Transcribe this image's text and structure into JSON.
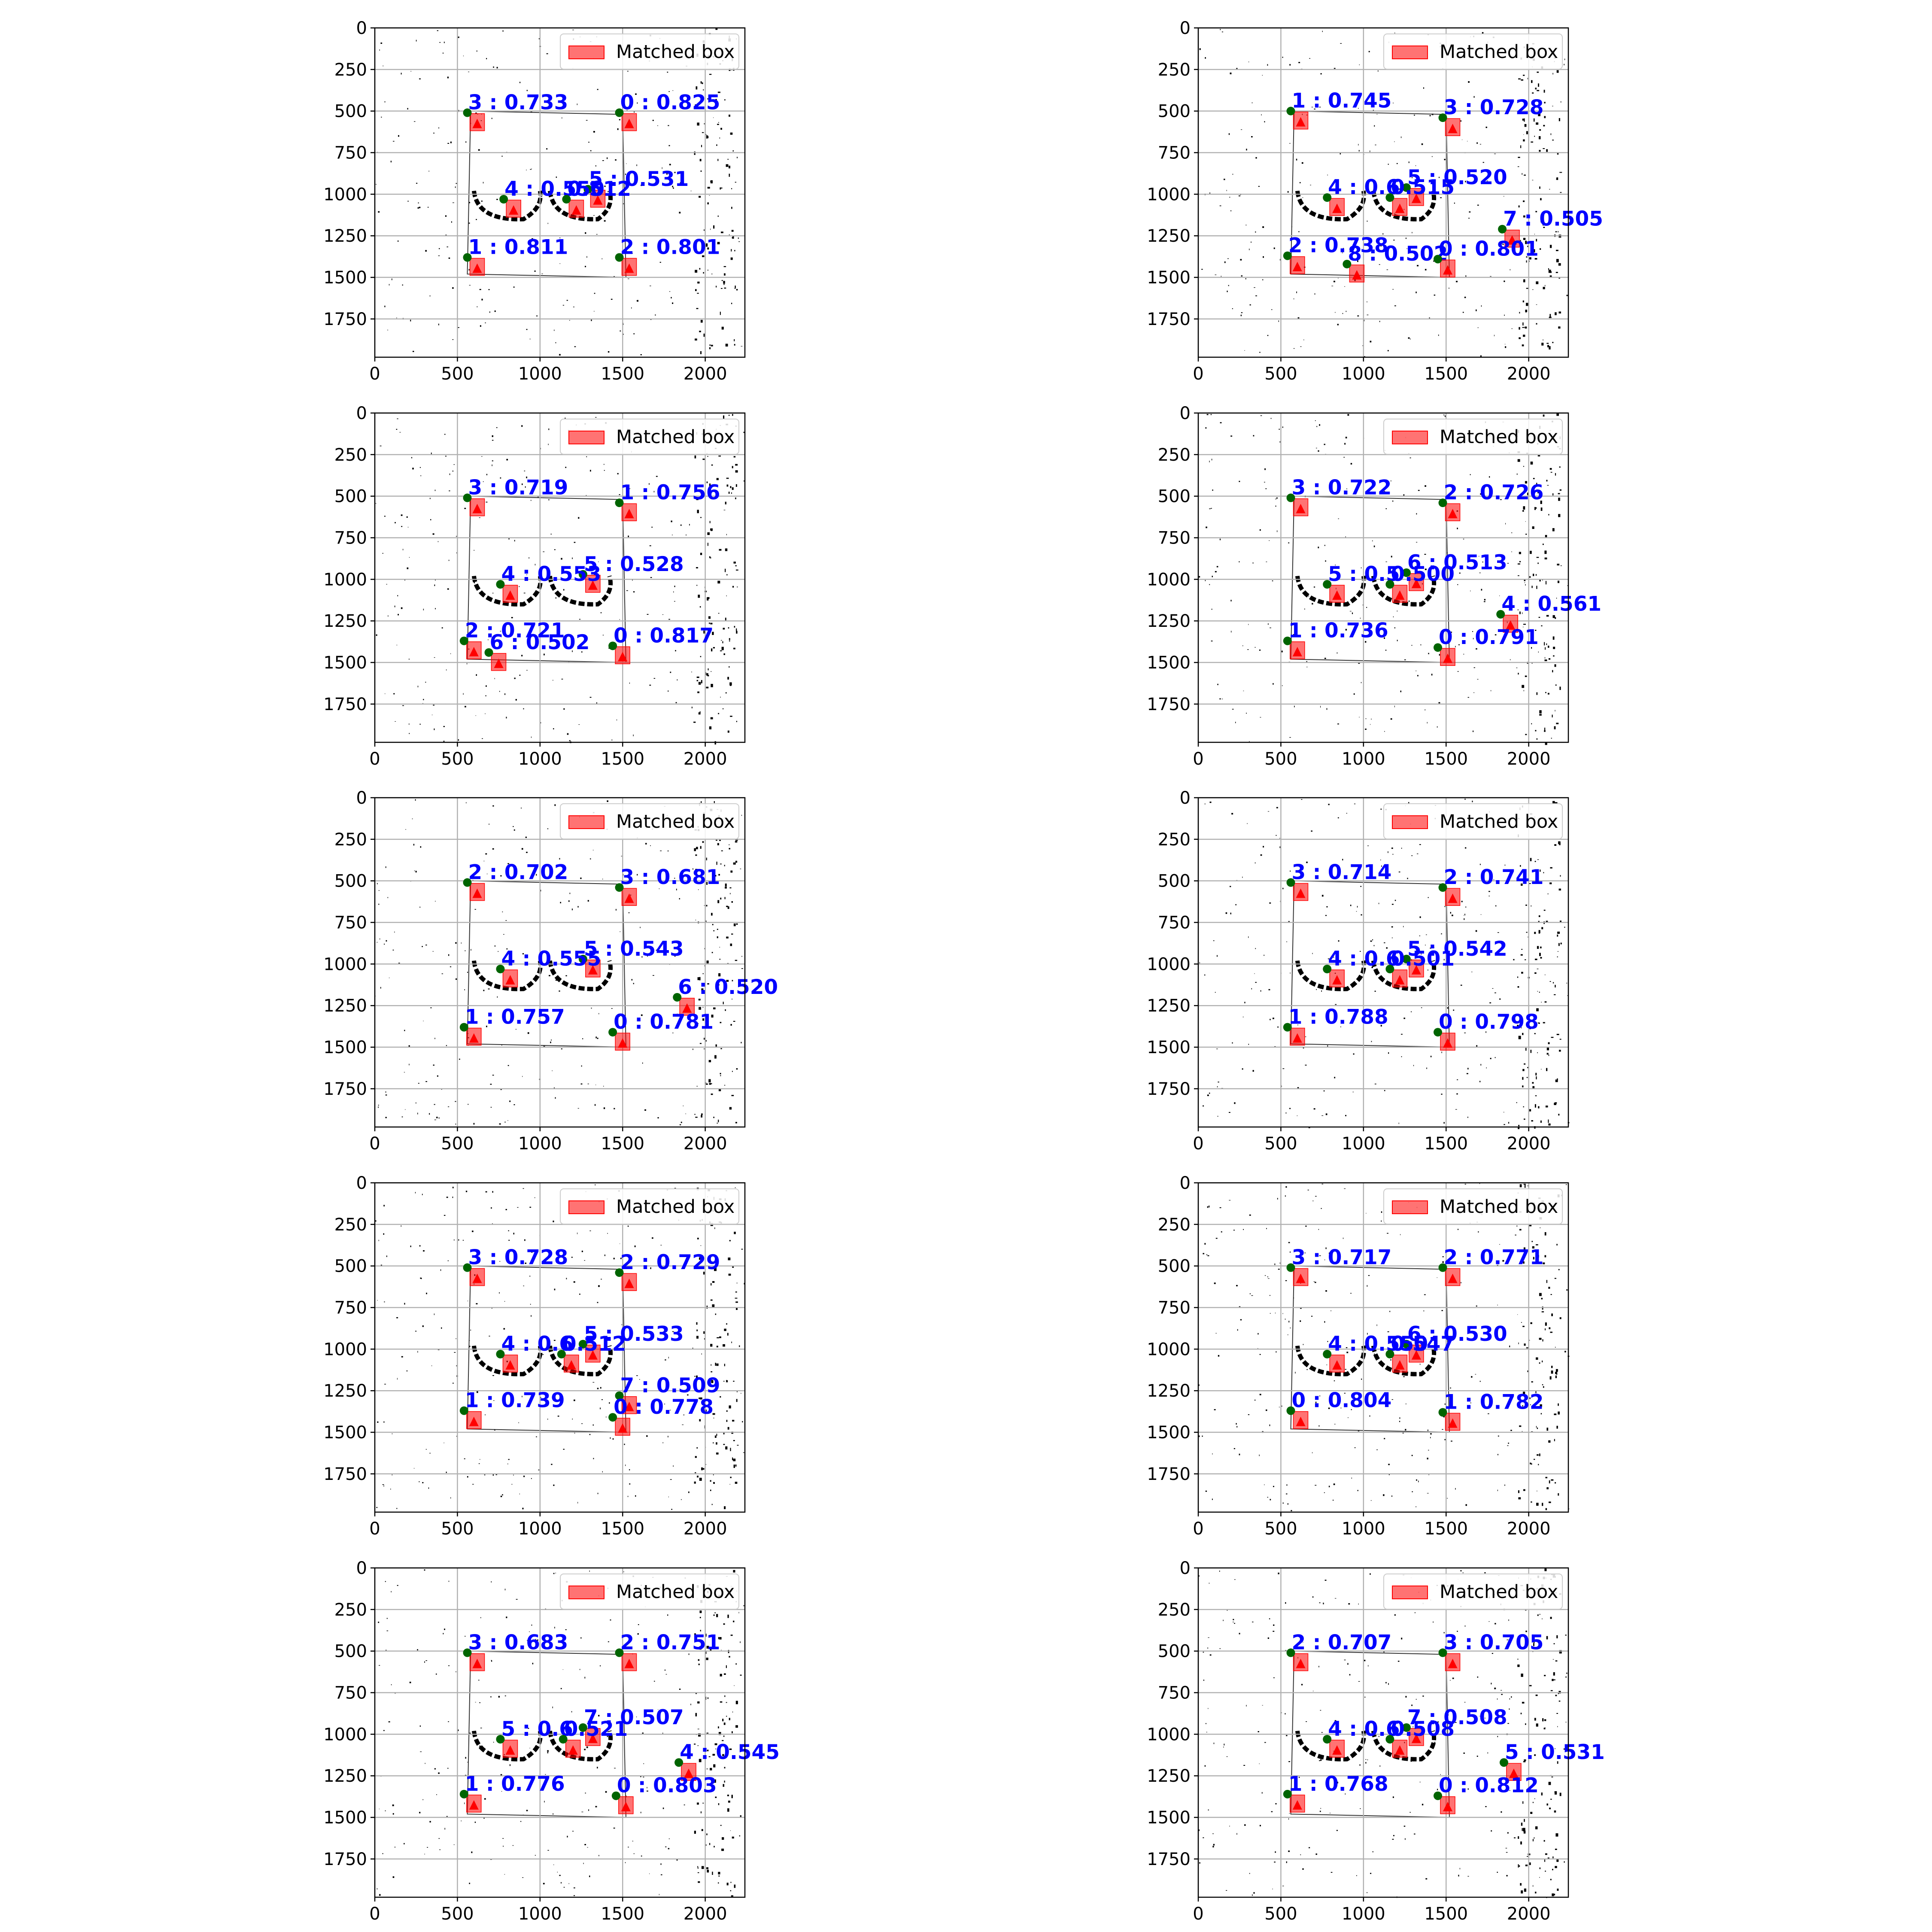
{
  "legend_label": "Matched box",
  "axis": {
    "x_ticks": [
      0,
      500,
      1000,
      1500,
      2000
    ],
    "y_ticks": [
      0,
      250,
      500,
      750,
      1000,
      1250,
      1500,
      1750
    ],
    "xlim": [
      0,
      2240
    ],
    "ylim": [
      1980,
      0
    ]
  },
  "colors": {
    "label": "#0000ff",
    "box": "#ff0000",
    "point": "#006400",
    "grid": "#b0b0b0"
  },
  "chart_data": [
    {
      "type": "scatter",
      "panel": "row1-left",
      "legend": "Matched box",
      "points": [
        {
          "label": "3 : 0.733",
          "x": 560,
          "y": 510
        },
        {
          "label": "0 : 0.825",
          "x": 1480,
          "y": 510
        },
        {
          "label": "5 : 0.531",
          "x": 1290,
          "y": 970
        },
        {
          "label": "4 : 0.550",
          "x": 780,
          "y": 1030
        },
        {
          "label": "0.512",
          "x": 1160,
          "y": 1030
        },
        {
          "label": "1 : 0.811",
          "x": 560,
          "y": 1380
        },
        {
          "label": "2 : 0.801",
          "x": 1480,
          "y": 1380
        }
      ]
    },
    {
      "type": "scatter",
      "panel": "row1-right",
      "legend": "Matched box",
      "points": [
        {
          "label": "1 : 0.745",
          "x": 560,
          "y": 500
        },
        {
          "label": "3 : 0.728",
          "x": 1480,
          "y": 540
        },
        {
          "label": "5 : 0.520",
          "x": 1260,
          "y": 960
        },
        {
          "label": "4 : 0.6",
          "x": 780,
          "y": 1020
        },
        {
          "label": "0.515",
          "x": 1160,
          "y": 1020
        },
        {
          "label": "7 : 0.505",
          "x": 1840,
          "y": 1210
        },
        {
          "label": "2 : 0.738",
          "x": 540,
          "y": 1370
        },
        {
          "label": "8 : 0.502",
          "x": 900,
          "y": 1420
        },
        {
          "label": "0 : 0.801",
          "x": 1450,
          "y": 1390
        }
      ]
    },
    {
      "type": "scatter",
      "panel": "row2-left",
      "legend": "Matched box",
      "points": [
        {
          "label": "3 : 0.719",
          "x": 560,
          "y": 510
        },
        {
          "label": "1 : 0.756",
          "x": 1480,
          "y": 540
        },
        {
          "label": "5 : 0.528",
          "x": 1260,
          "y": 970
        },
        {
          "label": "4 : 0.553",
          "x": 760,
          "y": 1030
        },
        {
          "label": "2 : 0.721",
          "x": 540,
          "y": 1370
        },
        {
          "label": "6 : 0.502",
          "x": 690,
          "y": 1440
        },
        {
          "label": "0 : 0.817",
          "x": 1440,
          "y": 1400
        }
      ]
    },
    {
      "type": "scatter",
      "panel": "row2-right",
      "legend": "Matched box",
      "points": [
        {
          "label": "3 : 0.722",
          "x": 560,
          "y": 510
        },
        {
          "label": "2 : 0.726",
          "x": 1480,
          "y": 540
        },
        {
          "label": "6 : 0.513",
          "x": 1260,
          "y": 960
        },
        {
          "label": "5 : 0.5",
          "x": 780,
          "y": 1030
        },
        {
          "label": "0.500",
          "x": 1160,
          "y": 1030
        },
        {
          "label": "4 : 0.561",
          "x": 1830,
          "y": 1210
        },
        {
          "label": "1 : 0.736",
          "x": 540,
          "y": 1370
        },
        {
          "label": "0 : 0.791",
          "x": 1450,
          "y": 1410
        }
      ]
    },
    {
      "type": "scatter",
      "panel": "row3-left",
      "legend": "Matched box",
      "points": [
        {
          "label": "2 : 0.702",
          "x": 560,
          "y": 510
        },
        {
          "label": "3 : 0.681",
          "x": 1480,
          "y": 540
        },
        {
          "label": "5 : 0.543",
          "x": 1260,
          "y": 970
        },
        {
          "label": "4 : 0.555",
          "x": 760,
          "y": 1030
        },
        {
          "label": "6 : 0.520",
          "x": 1830,
          "y": 1200
        },
        {
          "label": "1 : 0.757",
          "x": 540,
          "y": 1380
        },
        {
          "label": "0 : 0.781",
          "x": 1440,
          "y": 1410
        }
      ]
    },
    {
      "type": "scatter",
      "panel": "row3-right",
      "legend": "Matched box",
      "points": [
        {
          "label": "3 : 0.714",
          "x": 560,
          "y": 510
        },
        {
          "label": "2 : 0.741",
          "x": 1480,
          "y": 540
        },
        {
          "label": "5 : 0.542",
          "x": 1260,
          "y": 970
        },
        {
          "label": "4 : 0.6",
          "x": 780,
          "y": 1030
        },
        {
          "label": "0.501",
          "x": 1160,
          "y": 1030
        },
        {
          "label": "1 : 0.788",
          "x": 540,
          "y": 1380
        },
        {
          "label": "0 : 0.798",
          "x": 1450,
          "y": 1410
        }
      ]
    },
    {
      "type": "scatter",
      "panel": "row4-left",
      "legend": "Matched box",
      "points": [
        {
          "label": "3 : 0.728",
          "x": 560,
          "y": 510
        },
        {
          "label": "2 : 0.729",
          "x": 1480,
          "y": 540
        },
        {
          "label": "5 : 0.533",
          "x": 1260,
          "y": 970
        },
        {
          "label": "4 : 0.6",
          "x": 760,
          "y": 1030
        },
        {
          "label": "0.512",
          "x": 1130,
          "y": 1030
        },
        {
          "label": "7 : 0.509",
          "x": 1480,
          "y": 1280
        },
        {
          "label": "1 : 0.739",
          "x": 540,
          "y": 1370
        },
        {
          "label": "0 : 0.778",
          "x": 1440,
          "y": 1410
        }
      ]
    },
    {
      "type": "scatter",
      "panel": "row4-right",
      "legend": "Matched box",
      "points": [
        {
          "label": "3 : 0.717",
          "x": 560,
          "y": 510
        },
        {
          "label": "2 : 0.771",
          "x": 1480,
          "y": 510
        },
        {
          "label": "6 : 0.530",
          "x": 1260,
          "y": 970
        },
        {
          "label": "4 : 0.550",
          "x": 780,
          "y": 1030
        },
        {
          "label": "0.547",
          "x": 1160,
          "y": 1030
        },
        {
          "label": "0 : 0.804",
          "x": 560,
          "y": 1370
        },
        {
          "label": "1 : 0.782",
          "x": 1480,
          "y": 1380
        }
      ]
    },
    {
      "type": "scatter",
      "panel": "row5-left",
      "legend": "Matched box",
      "points": [
        {
          "label": "3 : 0.683",
          "x": 560,
          "y": 510
        },
        {
          "label": "2 : 0.751",
          "x": 1480,
          "y": 510
        },
        {
          "label": "7 : 0.507",
          "x": 1260,
          "y": 960
        },
        {
          "label": "5 : 0.6",
          "x": 760,
          "y": 1030
        },
        {
          "label": "0.521",
          "x": 1140,
          "y": 1030
        },
        {
          "label": "4 : 0.545",
          "x": 1840,
          "y": 1170
        },
        {
          "label": "1 : 0.776",
          "x": 540,
          "y": 1360
        },
        {
          "label": "0 : 0.803",
          "x": 1460,
          "y": 1370
        }
      ]
    },
    {
      "type": "scatter",
      "panel": "row5-right",
      "legend": "Matched box",
      "points": [
        {
          "label": "2 : 0.707",
          "x": 560,
          "y": 510
        },
        {
          "label": "3 : 0.705",
          "x": 1480,
          "y": 510
        },
        {
          "label": "7 : 0.508",
          "x": 1260,
          "y": 960
        },
        {
          "label": "4 : 0.6",
          "x": 780,
          "y": 1030
        },
        {
          "label": "0.508",
          "x": 1160,
          "y": 1030
        },
        {
          "label": "5 : 0.531",
          "x": 1850,
          "y": 1170
        },
        {
          "label": "1 : 0.768",
          "x": 540,
          "y": 1360
        },
        {
          "label": "0 : 0.812",
          "x": 1450,
          "y": 1370
        }
      ]
    }
  ]
}
